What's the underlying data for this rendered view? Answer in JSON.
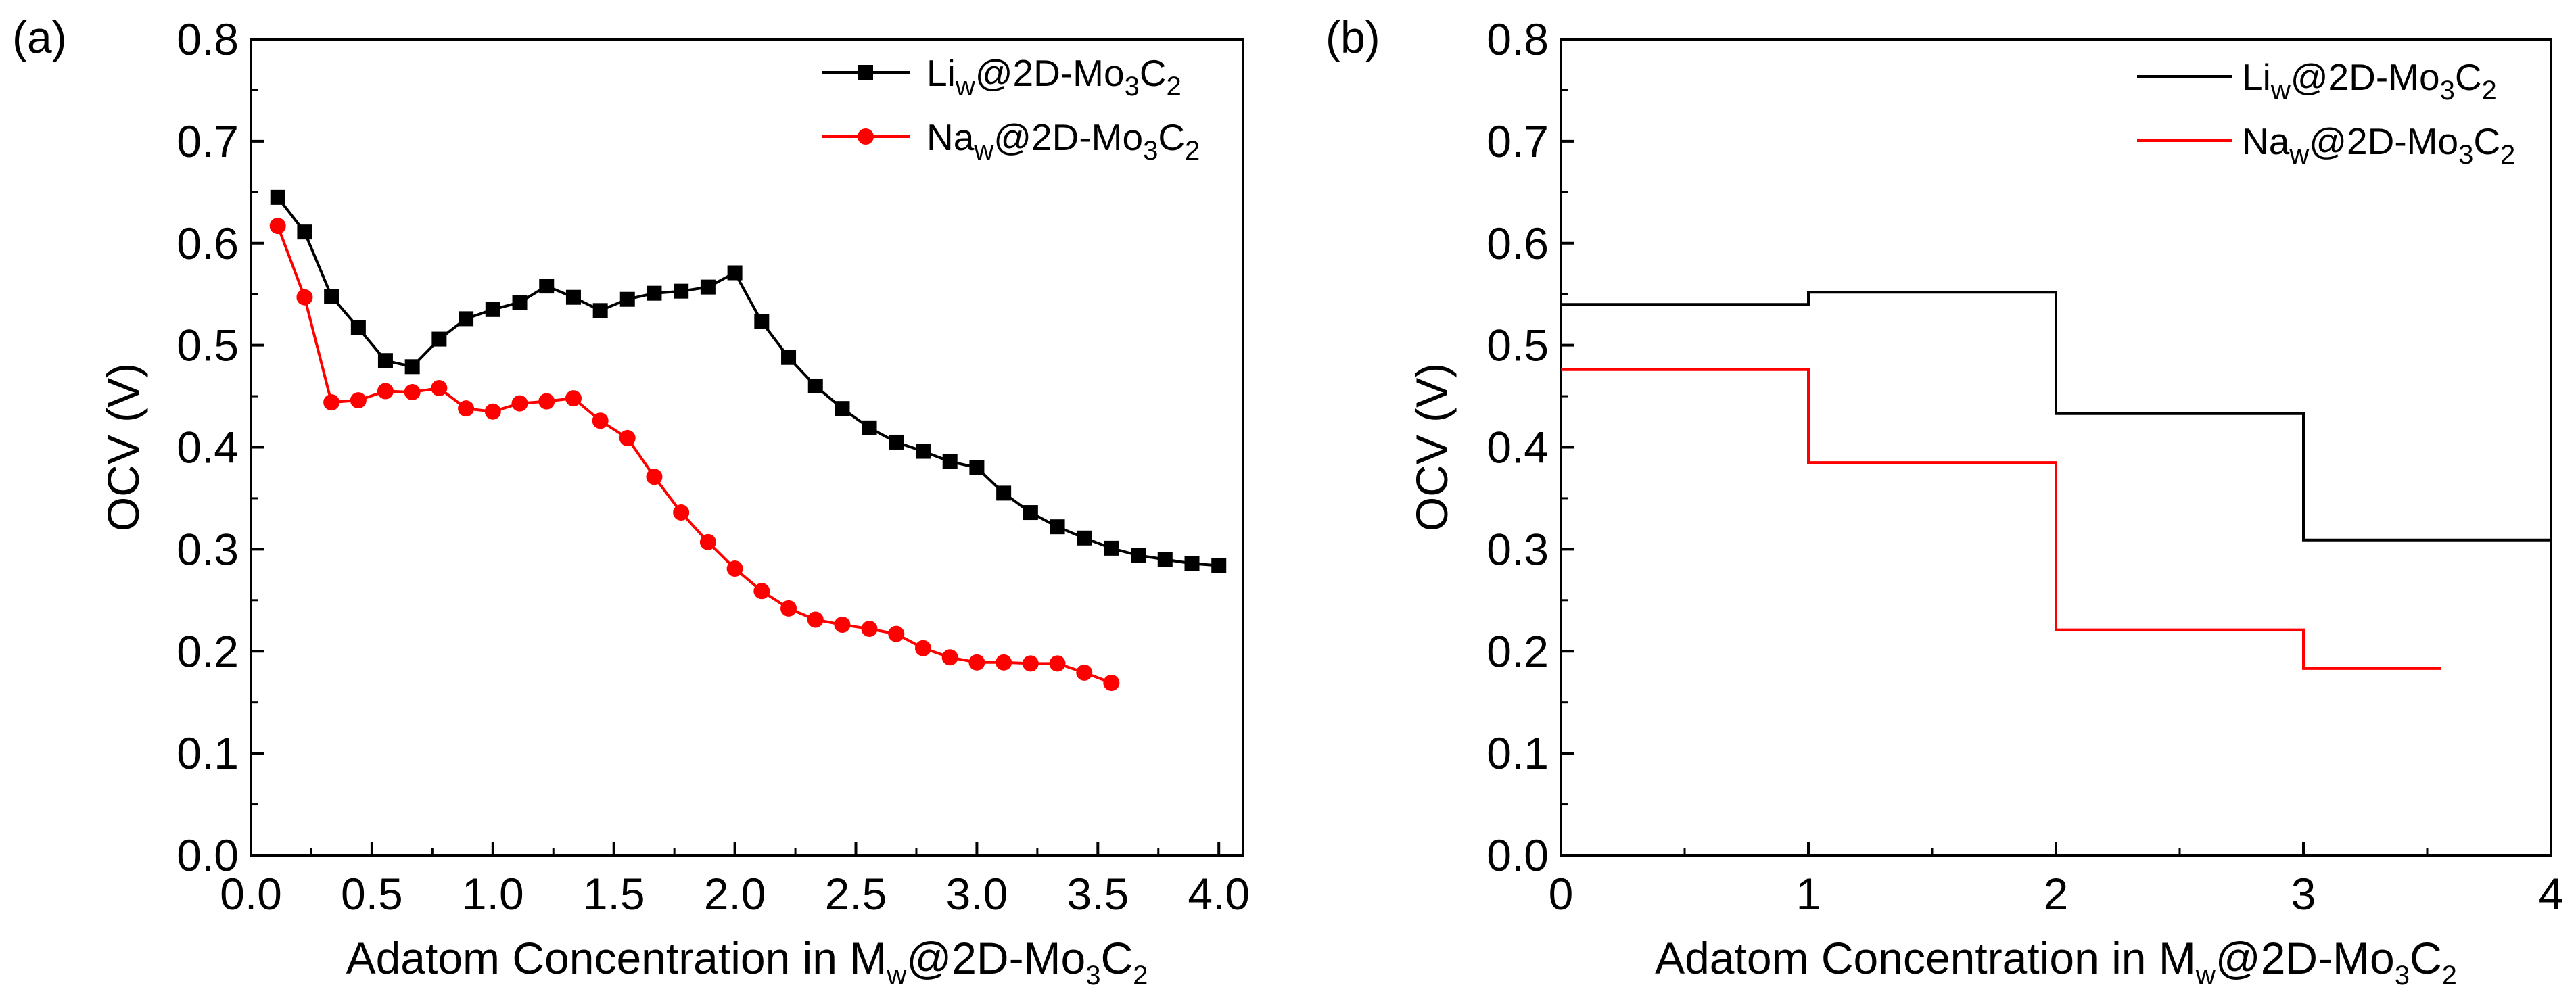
{
  "chart_data": [
    {
      "panel_label": "(a)",
      "type": "line",
      "xlabel": {
        "main": "Adatom Concentration in M",
        "sub1": "w",
        "mid": "@2D-Mo",
        "sub2": "3",
        "end": "C",
        "sub3": "2"
      },
      "ylabel": "OCV (V)",
      "xlim": [
        0.0,
        4.1
      ],
      "ylim": [
        0.0,
        0.8
      ],
      "xticks": [
        "0.0",
        "0.5",
        "1.0",
        "1.5",
        "2.0",
        "2.5",
        "3.0",
        "3.5",
        "4.0"
      ],
      "xtick_values": [
        0.0,
        0.5,
        1.0,
        1.5,
        2.0,
        2.5,
        3.0,
        3.5,
        4.0
      ],
      "yticks": [
        "0.0",
        "0.1",
        "0.2",
        "0.3",
        "0.4",
        "0.5",
        "0.6",
        "0.7",
        "0.8"
      ],
      "ytick_values": [
        0.0,
        0.1,
        0.2,
        0.3,
        0.4,
        0.5,
        0.6,
        0.7,
        0.8
      ],
      "legend_position": "top-right",
      "series": [
        {
          "name": "Li_w@2D-Mo3C2",
          "label": {
            "a": "Li",
            "s1": "w",
            "b": "@2D-Mo",
            "s2": "3",
            "c": "C",
            "s3": "2"
          },
          "color": "#000000",
          "marker": "square",
          "x": [
            0.111,
            0.222,
            0.333,
            0.444,
            0.556,
            0.667,
            0.778,
            0.889,
            1.0,
            1.111,
            1.222,
            1.333,
            1.444,
            1.556,
            1.667,
            1.778,
            1.889,
            2.0,
            2.111,
            2.222,
            2.333,
            2.444,
            2.556,
            2.667,
            2.778,
            2.889,
            3.0,
            3.111,
            3.222,
            3.333,
            3.444,
            3.556,
            3.667,
            3.778,
            3.889,
            4.0
          ],
          "y": [
            0.645,
            0.611,
            0.548,
            0.517,
            0.485,
            0.479,
            0.506,
            0.526,
            0.535,
            0.542,
            0.558,
            0.547,
            0.534,
            0.545,
            0.551,
            0.553,
            0.557,
            0.571,
            0.523,
            0.488,
            0.46,
            0.438,
            0.419,
            0.405,
            0.396,
            0.386,
            0.38,
            0.355,
            0.336,
            0.322,
            0.311,
            0.301,
            0.294,
            0.29,
            0.286,
            0.284
          ]
        },
        {
          "name": "Na_w@2D-Mo3C2",
          "label": {
            "a": "Na",
            "s1": "w",
            "b": "@2D-Mo",
            "s2": "3",
            "c": "C",
            "s3": "2"
          },
          "color": "#ff0000",
          "marker": "circle",
          "x": [
            0.111,
            0.222,
            0.333,
            0.444,
            0.556,
            0.667,
            0.778,
            0.889,
            1.0,
            1.111,
            1.222,
            1.333,
            1.444,
            1.556,
            1.667,
            1.778,
            1.889,
            2.0,
            2.111,
            2.222,
            2.333,
            2.444,
            2.556,
            2.667,
            2.778,
            2.889,
            3.0,
            3.111,
            3.222,
            3.333,
            3.444,
            3.556
          ],
          "y": [
            0.617,
            0.547,
            0.444,
            0.446,
            0.455,
            0.454,
            0.458,
            0.438,
            0.435,
            0.443,
            0.445,
            0.448,
            0.426,
            0.409,
            0.371,
            0.336,
            0.307,
            0.281,
            0.259,
            0.242,
            0.231,
            0.226,
            0.222,
            0.217,
            0.203,
            0.194,
            0.189,
            0.189,
            0.188,
            0.188,
            0.179,
            0.169
          ]
        }
      ]
    },
    {
      "panel_label": "(b)",
      "type": "line",
      "xlabel": {
        "main": "Adatom Concentration in M",
        "sub1": "w",
        "mid": "@2D-Mo",
        "sub2": "3",
        "end": "C",
        "sub3": "2"
      },
      "ylabel": "OCV (V)",
      "xlim": [
        0,
        4
      ],
      "ylim": [
        0.0,
        0.8
      ],
      "xticks": [
        "0",
        "1",
        "2",
        "3",
        "4"
      ],
      "xtick_values": [
        0,
        1,
        2,
        3,
        4
      ],
      "yticks": [
        "0.0",
        "0.1",
        "0.2",
        "0.3",
        "0.4",
        "0.5",
        "0.6",
        "0.7",
        "0.8"
      ],
      "ytick_values": [
        0.0,
        0.1,
        0.2,
        0.3,
        0.4,
        0.5,
        0.6,
        0.7,
        0.8
      ],
      "legend_position": "top-right",
      "series": [
        {
          "name": "Li_w@2D-Mo3C2",
          "label": {
            "a": "Li",
            "s1": "w",
            "b": "@2D-Mo",
            "s2": "3",
            "c": "C",
            "s3": "2"
          },
          "color": "#000000",
          "marker": "none",
          "x": [
            0,
            1,
            1,
            2,
            2,
            3,
            3,
            4
          ],
          "y": [
            0.54,
            0.54,
            0.552,
            0.552,
            0.433,
            0.433,
            0.309,
            0.309
          ]
        },
        {
          "name": "Na_w@2D-Mo3C2",
          "label": {
            "a": "Na",
            "s1": "w",
            "b": "@2D-Mo",
            "s2": "3",
            "c": "C",
            "s3": "2"
          },
          "color": "#ff0000",
          "marker": "none",
          "x": [
            0,
            1,
            1,
            2,
            2,
            3,
            3,
            3.556
          ],
          "y": [
            0.476,
            0.476,
            0.385,
            0.385,
            0.221,
            0.221,
            0.183,
            0.183
          ]
        }
      ]
    }
  ]
}
